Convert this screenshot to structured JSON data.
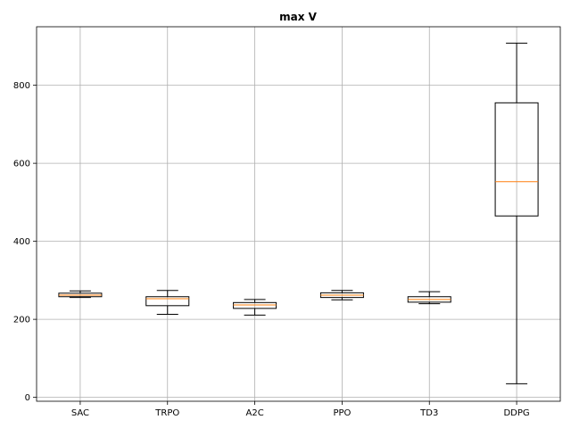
{
  "chart_data": {
    "type": "box",
    "title": "max V",
    "xlabel": "",
    "ylabel": "",
    "categories": [
      "SAC",
      "TRPO",
      "A2C",
      "PPO",
      "TD3",
      "DDPG"
    ],
    "boxes": [
      {
        "name": "SAC",
        "whisker_low": 256,
        "q1": 258,
        "median": 262,
        "q3": 267,
        "whisker_high": 273
      },
      {
        "name": "TRPO",
        "whisker_low": 213,
        "q1": 235,
        "median": 253,
        "q3": 258,
        "whisker_high": 274
      },
      {
        "name": "A2C",
        "whisker_low": 211,
        "q1": 228,
        "median": 237,
        "q3": 243,
        "whisker_high": 251
      },
      {
        "name": "PPO",
        "whisker_low": 250,
        "q1": 256,
        "median": 262,
        "q3": 268,
        "whisker_high": 274
      },
      {
        "name": "TD3",
        "whisker_low": 240,
        "q1": 244,
        "median": 251,
        "q3": 258,
        "whisker_high": 271
      },
      {
        "name": "DDPG",
        "whisker_low": 35,
        "q1": 465,
        "median": 553,
        "q3": 755,
        "whisker_high": 908
      }
    ],
    "yticks": [
      0,
      200,
      400,
      600,
      800
    ],
    "ylim": [
      -10,
      950
    ],
    "grid": true,
    "colors": {
      "box": "#000000",
      "median": "#ff7f0e",
      "grid": "#b0b0b0"
    }
  }
}
